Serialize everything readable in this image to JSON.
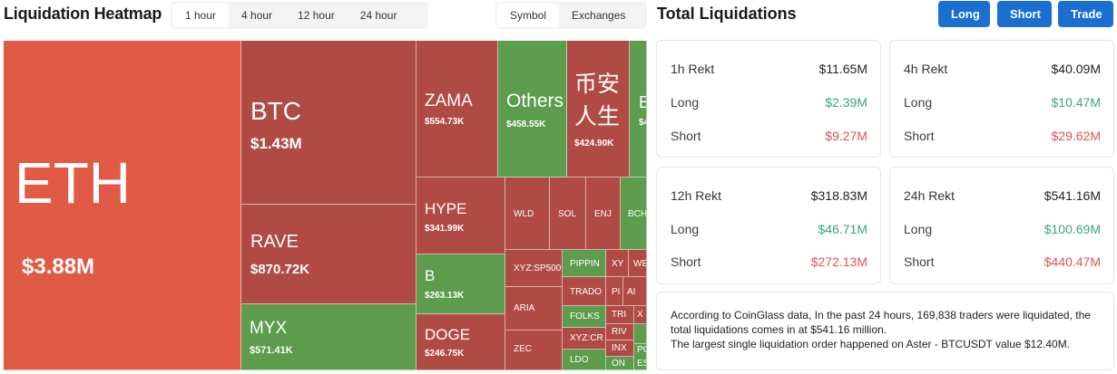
{
  "heatmap": {
    "title": "Liquidation Heatmap",
    "time_options": [
      "1 hour",
      "4 hour",
      "12 hour",
      "24 hour"
    ],
    "selected_time": "1 hour",
    "view_options": [
      "Symbol",
      "Exchanges"
    ],
    "selected_view": "Symbol"
  },
  "tiles": [
    {
      "symbol": "ETH",
      "value": "$3.88M"
    },
    {
      "symbol": "BTC",
      "value": "$1.43M"
    },
    {
      "symbol": "RAVE",
      "value": "$870.72K"
    },
    {
      "symbol": "MYX",
      "value": "$571.41K"
    },
    {
      "symbol": "ZAMA",
      "value": "$554.73K"
    },
    {
      "symbol": "Others",
      "value": "$458.55K"
    },
    {
      "symbol": "币安人生",
      "value": "$424.90K"
    },
    {
      "symbol": "B",
      "value": "$4"
    },
    {
      "symbol": "HYPE",
      "value": "$341.99K"
    },
    {
      "symbol": "WLD",
      "value": ""
    },
    {
      "symbol": "SOL",
      "value": ""
    },
    {
      "symbol": "ENJ",
      "value": ""
    },
    {
      "symbol": "BCH",
      "value": ""
    },
    {
      "symbol": "B",
      "value": "$263.13K"
    },
    {
      "symbol": "DOGE",
      "value": "$246.75K"
    },
    {
      "symbol": "XYZ:SP500",
      "value": ""
    },
    {
      "symbol": "ARIA",
      "value": ""
    },
    {
      "symbol": "ZEC",
      "value": ""
    },
    {
      "symbol": "PIPPIN",
      "value": ""
    },
    {
      "symbol": "TRADO",
      "value": ""
    },
    {
      "symbol": "FOLKS",
      "value": ""
    },
    {
      "symbol": "XYZ:CR",
      "value": ""
    },
    {
      "symbol": "LDO",
      "value": ""
    },
    {
      "symbol": "XY",
      "value": ""
    },
    {
      "symbol": "WE",
      "value": ""
    },
    {
      "symbol": "PI",
      "value": ""
    },
    {
      "symbol": "AI",
      "value": ""
    },
    {
      "symbol": "TRI",
      "value": ""
    },
    {
      "symbol": "X",
      "value": ""
    },
    {
      "symbol": "RIV",
      "value": ""
    },
    {
      "symbol": "INX",
      "value": ""
    },
    {
      "symbol": "LI",
      "value": ""
    },
    {
      "symbol": "PO",
      "value": ""
    },
    {
      "symbol": "ON",
      "value": ""
    },
    {
      "symbol": "ES",
      "value": ""
    }
  ],
  "totals": {
    "title": "Total Liquidations",
    "buttons": {
      "long": "Long",
      "short": "Short",
      "trade": "Trade"
    },
    "labels": {
      "long": "Long",
      "short": "Short"
    },
    "cards": [
      {
        "period": "1h Rekt",
        "total": "$11.65M",
        "long": "$2.39M",
        "short": "$9.27M"
      },
      {
        "period": "4h Rekt",
        "total": "$40.09M",
        "long": "$10.47M",
        "short": "$29.62M"
      },
      {
        "period": "12h Rekt",
        "total": "$318.83M",
        "long": "$46.71M",
        "short": "$272.13M"
      },
      {
        "period": "24h Rekt",
        "total": "$541.16M",
        "long": "$100.69M",
        "short": "$440.47M"
      }
    ],
    "info_line1": "According to CoinGlass data, In the past 24 hours, 169,838 traders were liquidated, the total liquidations comes in at $541.16 million.",
    "info_line2": "The largest single liquidation order happened on Aster - BTCUSDT value $12.40M."
  },
  "colors": {
    "long": "#3ea37a",
    "short": "#e05252",
    "accent": "#1a6fd1",
    "tile_red": "#b04a45",
    "tile_green": "#5c9c4c",
    "tile_orange": "#e05a45"
  }
}
